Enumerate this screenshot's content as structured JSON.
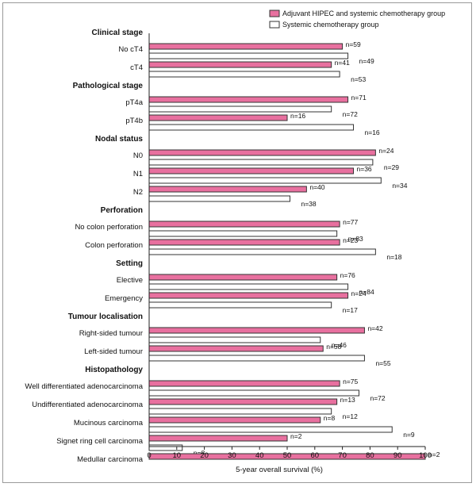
{
  "chart_data": {
    "type": "bar",
    "orientation": "horizontal",
    "xlabel": "5-year overall survival (%)",
    "xlim": [
      0,
      100
    ],
    "xticks": [
      0,
      10,
      20,
      30,
      40,
      50,
      60,
      70,
      80,
      90,
      100
    ],
    "grid": false,
    "legend_position": "top-right",
    "series": [
      {
        "name": "Adjuvant HIPEC and systemic chemotherapy group",
        "color": "#e8709f"
      },
      {
        "name": "Systemic chemotherapy group",
        "color": "#ffffff"
      }
    ],
    "groups": [
      {
        "title": "Clinical stage",
        "rows": [
          {
            "label": "No cT4",
            "values": [
              70,
              72
            ],
            "n": [
              "n=59",
              "n=49"
            ]
          },
          {
            "label": "cT4",
            "values": [
              66,
              69
            ],
            "n": [
              "n=41",
              "n=53"
            ]
          }
        ]
      },
      {
        "title": "Pathological stage",
        "rows": [
          {
            "label": "pT4a",
            "values": [
              72,
              66
            ],
            "n": [
              "n=71",
              "n=72"
            ]
          },
          {
            "label": "pT4b",
            "values": [
              50,
              74
            ],
            "n": [
              "n=16",
              "n=16"
            ]
          }
        ]
      },
      {
        "title": "Nodal status",
        "rows": [
          {
            "label": "N0",
            "values": [
              82,
              81
            ],
            "n": [
              "n=24",
              "n=29"
            ]
          },
          {
            "label": "N1",
            "values": [
              74,
              84
            ],
            "n": [
              "n=36",
              "n=34"
            ]
          },
          {
            "label": "N2",
            "values": [
              57,
              51
            ],
            "n": [
              "n=40",
              "n=38"
            ]
          }
        ]
      },
      {
        "title": "Perforation",
        "rows": [
          {
            "label": "No colon perforation",
            "values": [
              69,
              68
            ],
            "n": [
              "n=77",
              "n=83"
            ]
          },
          {
            "label": "Colon perforation",
            "values": [
              69,
              82
            ],
            "n": [
              "n=23",
              "n=18"
            ]
          }
        ]
      },
      {
        "title": "Setting",
        "rows": [
          {
            "label": "Elective",
            "values": [
              68,
              72
            ],
            "n": [
              "n=76",
              "n=84"
            ]
          },
          {
            "label": "Emergency",
            "values": [
              72,
              66
            ],
            "n": [
              "n=24",
              "n=17"
            ]
          }
        ]
      },
      {
        "title": "Tumour localisation",
        "rows": [
          {
            "label": "Right-sided tumour",
            "values": [
              78,
              62
            ],
            "n": [
              "n=42",
              "n=46"
            ]
          },
          {
            "label": "Left-sided tumour",
            "values": [
              63,
              78
            ],
            "n": [
              "n=58",
              "n=55"
            ]
          }
        ]
      },
      {
        "title": "Histopathology",
        "rows": [
          {
            "label": "Well differentiated adenocarcinoma",
            "values": [
              69,
              76
            ],
            "n": [
              "n=75",
              "n=72"
            ]
          },
          {
            "label": "Undifferentiated adenocarcinoma",
            "values": [
              68,
              66
            ],
            "n": [
              "n=13",
              "n=12"
            ]
          },
          {
            "label": "Mucinous carcinoma",
            "values": [
              62,
              88
            ],
            "n": [
              "n=8",
              "n=9"
            ]
          },
          {
            "label": "Signet ring cell carcinoma",
            "values": [
              50,
              12
            ],
            "n": [
              "n=2",
              "n=8"
            ]
          },
          {
            "label": "Medullar carcinoma",
            "values": [
              100,
              null
            ],
            "n": [
              "n=2",
              ""
            ]
          }
        ]
      }
    ]
  }
}
